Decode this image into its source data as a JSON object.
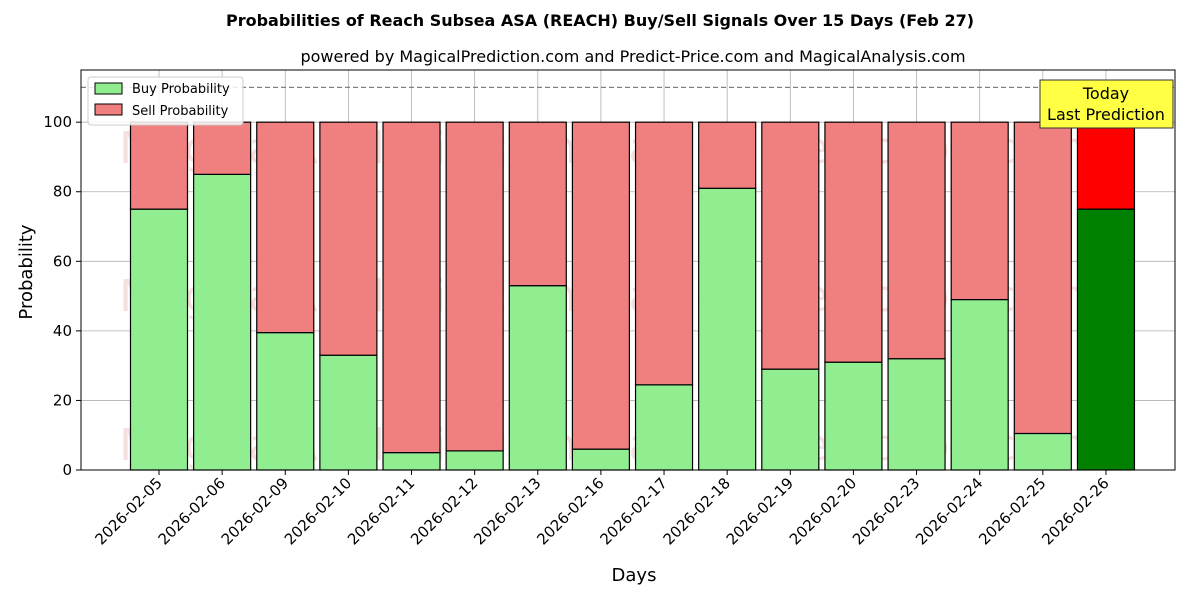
{
  "chart_data": {
    "type": "bar",
    "stacked": true,
    "title": "Probabilities of Reach Subsea ASA (REACH) Buy/Sell Signals Over 15 Days (Feb 27)",
    "subtitle": "powered by MagicalPrediction.com and Predict-Price.com and MagicalAnalysis.com",
    "xlabel": "Days",
    "ylabel": "Probability",
    "ylim": [
      0,
      115
    ],
    "yticks": [
      0,
      20,
      40,
      60,
      80,
      100
    ],
    "reference_line": 110,
    "grid": true,
    "legend_position": "top-left",
    "categories": [
      "2026-02-05",
      "2026-02-06",
      "2026-02-09",
      "2026-02-10",
      "2026-02-11",
      "2026-02-12",
      "2026-02-13",
      "2026-02-16",
      "2026-02-17",
      "2026-02-18",
      "2026-02-19",
      "2026-02-20",
      "2026-02-23",
      "2026-02-24",
      "2026-02-25",
      "2026-02-26"
    ],
    "series": [
      {
        "name": "Buy Probability",
        "color": "#90ee90",
        "highlight_color": "#008000",
        "values": [
          75,
          85,
          39.5,
          33,
          5,
          5.5,
          53,
          6,
          24.5,
          81,
          29,
          31,
          32,
          49,
          10.5,
          75
        ]
      },
      {
        "name": "Sell Probability",
        "color": "#f08080",
        "highlight_color": "#ff0000",
        "values": [
          25,
          15,
          60.5,
          67,
          95,
          94.5,
          47,
          94,
          75.5,
          19,
          71,
          69,
          68,
          51,
          89.5,
          25
        ]
      }
    ],
    "annotation": {
      "line1": "Today",
      "line2": "Last Prediction",
      "color": "#ffff44"
    },
    "watermarks": [
      "MagicalAnalysis.com",
      "MagicalPrediction.com"
    ]
  }
}
